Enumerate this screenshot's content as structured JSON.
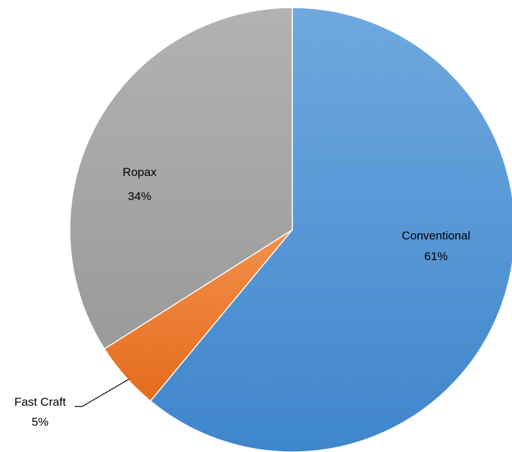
{
  "chart_data": {
    "type": "pie",
    "title": "",
    "categories": [
      "Conventional",
      "Fast Craft",
      "Ropax"
    ],
    "values": [
      61,
      5,
      34
    ],
    "unit": "%",
    "labels": [
      {
        "category": "Conventional",
        "value_text": "61%"
      },
      {
        "category": "Fast Craft",
        "value_text": "5%"
      },
      {
        "category": "Ropax",
        "value_text": "34%"
      }
    ],
    "colors": [
      "#4a8fd4",
      "#ed7d31",
      "#a5a5a5"
    ],
    "start_angle_deg": 0,
    "direction": "clockwise",
    "legend": "none",
    "fast_craft_leader_line": true
  }
}
